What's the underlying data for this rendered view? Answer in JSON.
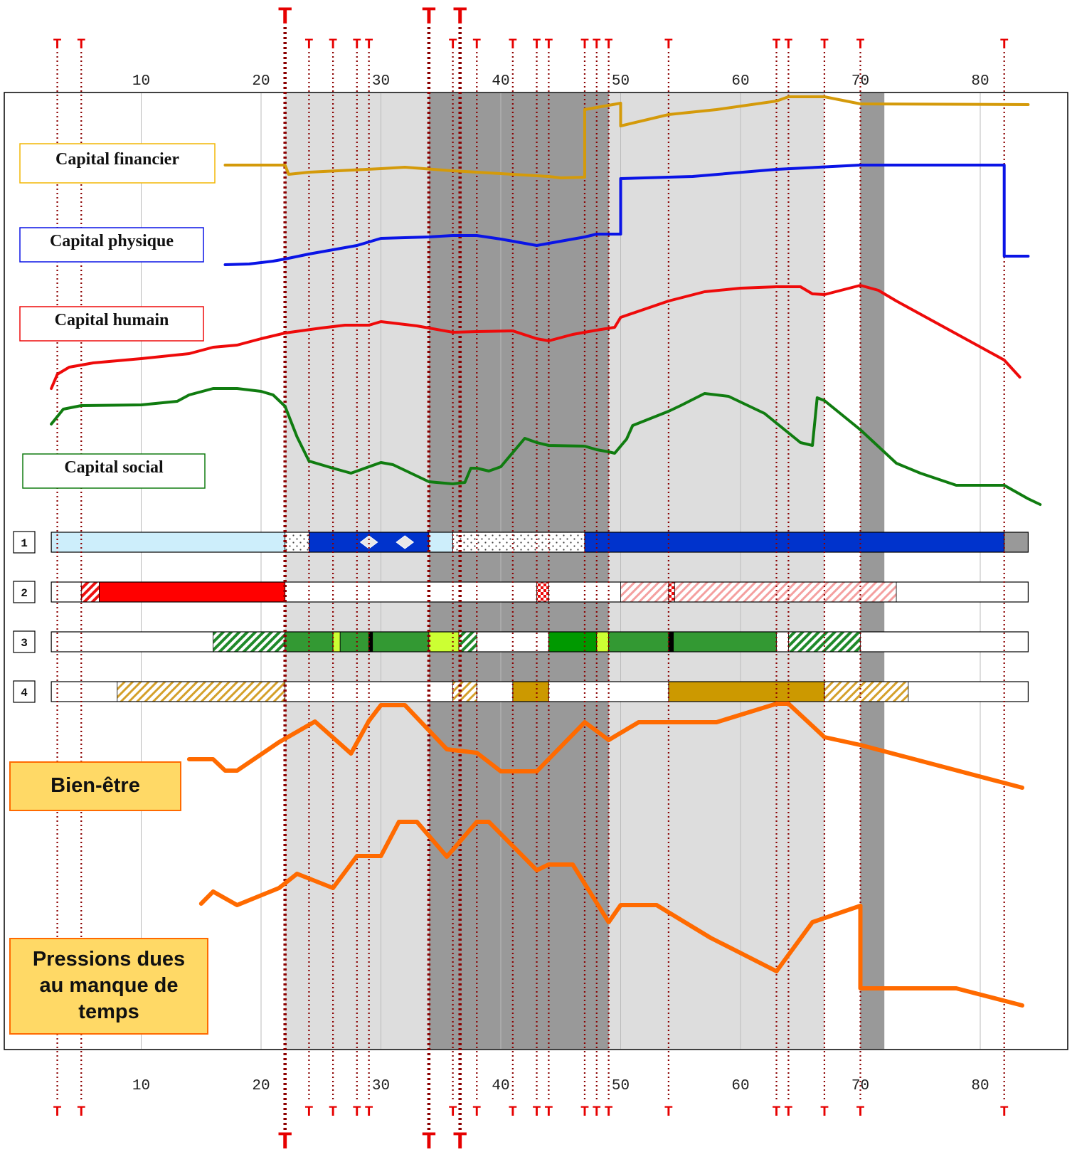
{
  "chart_data": {
    "type": "line",
    "x_ticks": [
      10,
      20,
      30,
      40,
      50,
      60,
      70,
      80
    ],
    "x_range": [
      0,
      88
    ],
    "shaded_periods": [
      {
        "start": 22,
        "end": 67,
        "tone": "light"
      },
      {
        "start": 34,
        "end": 49,
        "tone": "dark"
      },
      {
        "start": 70,
        "end": 72,
        "tone": "dark"
      }
    ],
    "transitions": {
      "marker": "T",
      "minor_ages": [
        3,
        5,
        24,
        26,
        28,
        29,
        36,
        38,
        41,
        43,
        44,
        47,
        48,
        49,
        54,
        63,
        64,
        67,
        70,
        82
      ],
      "major_ages": [
        22,
        34,
        36.6
      ]
    },
    "capital_series": [
      {
        "name": "Capital financier",
        "color": "#d49a0a",
        "points": [
          [
            17,
            232
          ],
          [
            22,
            232
          ],
          [
            22.3,
            245
          ],
          [
            24,
            242
          ],
          [
            30,
            237
          ],
          [
            32,
            235
          ],
          [
            36,
            240
          ],
          [
            44,
            248
          ],
          [
            45,
            250
          ],
          [
            47,
            249
          ],
          [
            47,
            154
          ],
          [
            50,
            145
          ],
          [
            50,
            177
          ],
          [
            54,
            161
          ],
          [
            58,
            154
          ],
          [
            63,
            142
          ],
          [
            64,
            136
          ],
          [
            67,
            136
          ],
          [
            70,
            146
          ],
          [
            84,
            147
          ]
        ]
      },
      {
        "name": "Capital physique",
        "color": "#0a14e6",
        "points": [
          [
            17,
            372
          ],
          [
            19,
            371
          ],
          [
            21,
            367
          ],
          [
            22,
            364
          ],
          [
            24,
            357
          ],
          [
            26,
            351
          ],
          [
            28,
            345
          ],
          [
            30,
            335
          ],
          [
            34,
            333
          ],
          [
            36,
            331
          ],
          [
            38,
            331
          ],
          [
            40,
            336
          ],
          [
            42,
            342
          ],
          [
            43,
            345
          ],
          [
            45,
            339
          ],
          [
            47,
            333
          ],
          [
            48,
            329
          ],
          [
            50,
            329
          ],
          [
            50,
            251
          ],
          [
            56,
            248
          ],
          [
            63,
            238
          ],
          [
            70,
            232
          ],
          [
            82,
            232
          ],
          [
            82,
            360
          ],
          [
            84,
            360
          ]
        ]
      },
      {
        "name": "Capital humain",
        "color": "#ee0a0a",
        "points": [
          [
            2.5,
            546
          ],
          [
            3,
            526
          ],
          [
            4,
            516
          ],
          [
            6,
            510
          ],
          [
            10,
            504
          ],
          [
            14,
            497
          ],
          [
            16,
            488
          ],
          [
            18,
            485
          ],
          [
            20,
            476
          ],
          [
            22,
            468
          ],
          [
            25,
            461
          ],
          [
            27,
            457
          ],
          [
            29,
            457
          ],
          [
            30,
            452
          ],
          [
            33,
            458
          ],
          [
            36,
            467
          ],
          [
            38,
            466
          ],
          [
            41,
            465
          ],
          [
            43,
            476
          ],
          [
            44,
            479
          ],
          [
            46,
            470
          ],
          [
            48,
            464
          ],
          [
            49.5,
            460
          ],
          [
            50,
            446
          ],
          [
            54,
            423
          ],
          [
            57,
            410
          ],
          [
            60,
            405
          ],
          [
            63,
            403
          ],
          [
            65,
            403
          ],
          [
            66,
            413
          ],
          [
            67,
            414
          ],
          [
            70,
            401
          ],
          [
            71.5,
            408
          ],
          [
            73,
            423
          ],
          [
            82,
            506
          ],
          [
            83.3,
            530
          ]
        ]
      },
      {
        "name": "Capital social",
        "color": "#107c10",
        "points": [
          [
            2.5,
            596
          ],
          [
            3.5,
            575
          ],
          [
            5,
            570
          ],
          [
            10,
            569
          ],
          [
            13,
            564
          ],
          [
            14,
            555
          ],
          [
            16,
            546
          ],
          [
            18,
            546
          ],
          [
            20,
            550
          ],
          [
            21,
            555
          ],
          [
            22,
            571
          ],
          [
            23,
            614
          ],
          [
            24,
            648
          ],
          [
            26,
            658
          ],
          [
            27.5,
            665
          ],
          [
            30,
            650
          ],
          [
            31,
            653
          ],
          [
            34,
            677
          ],
          [
            36,
            680
          ],
          [
            37,
            678
          ],
          [
            37.5,
            658
          ],
          [
            38,
            658
          ],
          [
            39,
            662
          ],
          [
            40,
            656
          ],
          [
            42,
            616
          ],
          [
            43,
            622
          ],
          [
            44,
            626
          ],
          [
            47,
            627
          ],
          [
            48,
            632
          ],
          [
            49,
            635
          ],
          [
            49.5,
            637
          ],
          [
            50.5,
            617
          ],
          [
            51,
            598
          ],
          [
            54,
            578
          ],
          [
            55,
            570
          ],
          [
            57,
            553
          ],
          [
            59,
            557
          ],
          [
            62,
            581
          ],
          [
            65,
            622
          ],
          [
            66,
            626
          ],
          [
            66.4,
            559
          ],
          [
            67,
            563
          ],
          [
            70,
            604
          ],
          [
            73,
            651
          ],
          [
            75,
            665
          ],
          [
            78,
            682
          ],
          [
            82,
            682
          ],
          [
            84,
            701
          ],
          [
            85,
            709
          ]
        ]
      }
    ],
    "life_series": [
      {
        "name": "Bien-être",
        "color": "#ff6a00",
        "points": [
          [
            14,
            1067
          ],
          [
            16,
            1067
          ],
          [
            17,
            1083
          ],
          [
            18,
            1083
          ],
          [
            21.5,
            1043
          ],
          [
            24.5,
            1014
          ],
          [
            27.5,
            1059
          ],
          [
            29,
            1013
          ],
          [
            30,
            991
          ],
          [
            32,
            991
          ],
          [
            35.5,
            1053
          ],
          [
            38,
            1058
          ],
          [
            40,
            1084
          ],
          [
            43,
            1084
          ],
          [
            47,
            1015
          ],
          [
            49,
            1040
          ],
          [
            51.5,
            1015
          ],
          [
            58,
            1015
          ],
          [
            63,
            989
          ],
          [
            64,
            989
          ],
          [
            67,
            1036
          ],
          [
            70,
            1047
          ],
          [
            83.5,
            1107
          ]
        ]
      },
      {
        "name": "Pressions dues au manque de temps",
        "color": "#ff6a00",
        "points": [
          [
            15,
            1270
          ],
          [
            16,
            1253
          ],
          [
            18,
            1272
          ],
          [
            21.5,
            1248
          ],
          [
            23,
            1228
          ],
          [
            26,
            1248
          ],
          [
            28,
            1203
          ],
          [
            30,
            1203
          ],
          [
            31.5,
            1155
          ],
          [
            33,
            1155
          ],
          [
            35.5,
            1204
          ],
          [
            38,
            1155
          ],
          [
            39,
            1155
          ],
          [
            43,
            1223
          ],
          [
            44,
            1215
          ],
          [
            46,
            1215
          ],
          [
            49,
            1296
          ],
          [
            50,
            1272
          ],
          [
            53,
            1272
          ],
          [
            57.5,
            1318
          ],
          [
            63,
            1365
          ],
          [
            66,
            1296
          ],
          [
            70,
            1273
          ],
          [
            70,
            1389
          ],
          [
            78,
            1389
          ],
          [
            83.5,
            1413
          ]
        ]
      }
    ],
    "bars": [
      {
        "label": "1",
        "segments": [
          {
            "start": 2.5,
            "end": 22,
            "style": "light-blue"
          },
          {
            "start": 22,
            "end": 24,
            "style": "dotted"
          },
          {
            "start": 24,
            "end": 34,
            "style": "blue"
          },
          {
            "start": 34,
            "end": 36,
            "style": "light-blue"
          },
          {
            "start": 36,
            "end": 47,
            "style": "dotted"
          },
          {
            "start": 47,
            "end": 82,
            "style": "blue"
          },
          {
            "start": 82,
            "end": 84,
            "style": "grey"
          }
        ],
        "diamonds_at": [
          29,
          32
        ]
      },
      {
        "label": "2",
        "segments": [
          {
            "start": 5,
            "end": 6.5,
            "style": "red-hatch"
          },
          {
            "start": 6.5,
            "end": 22,
            "style": "red"
          },
          {
            "start": 43,
            "end": 44,
            "style": "red-check"
          },
          {
            "start": 50,
            "end": 54,
            "style": "pink-hatch"
          },
          {
            "start": 54,
            "end": 54.5,
            "style": "red-check"
          },
          {
            "start": 54.5,
            "end": 73,
            "style": "pink-hatch"
          }
        ]
      },
      {
        "label": "3",
        "segments": [
          {
            "start": 16,
            "end": 22,
            "style": "green-hatch"
          },
          {
            "start": 22,
            "end": 26,
            "style": "green"
          },
          {
            "start": 26,
            "end": 26.6,
            "style": "lime"
          },
          {
            "start": 26.6,
            "end": 29,
            "style": "green"
          },
          {
            "start": 29,
            "end": 29.3,
            "style": "black"
          },
          {
            "start": 29.3,
            "end": 34,
            "style": "green"
          },
          {
            "start": 34,
            "end": 36.5,
            "style": "lime"
          },
          {
            "start": 36.5,
            "end": 38,
            "style": "green-hatch"
          },
          {
            "start": 44,
            "end": 48,
            "style": "bright-green"
          },
          {
            "start": 48,
            "end": 49,
            "style": "lime"
          },
          {
            "start": 49,
            "end": 54,
            "style": "green"
          },
          {
            "start": 54,
            "end": 54.4,
            "style": "black"
          },
          {
            "start": 54.4,
            "end": 63,
            "style": "green"
          },
          {
            "start": 64,
            "end": 70,
            "style": "green-hatch"
          }
        ]
      },
      {
        "label": "4",
        "segments": [
          {
            "start": 8,
            "end": 22,
            "style": "gold-hatch"
          },
          {
            "start": 36,
            "end": 38,
            "style": "gold-hatch"
          },
          {
            "start": 41,
            "end": 44,
            "style": "gold"
          },
          {
            "start": 54,
            "end": 67,
            "style": "gold"
          },
          {
            "start": 67,
            "end": 74,
            "style": "gold-hatch"
          }
        ]
      }
    ]
  },
  "labels": {
    "capital_financier": "Capital financier",
    "capital_physique": "Capital physique",
    "capital_humain": "Capital humain",
    "capital_social": "Capital social",
    "bien_etre": "Bien-être",
    "pressions_1": "Pressions dues",
    "pressions_2": "au manque de",
    "pressions_3": "temps"
  },
  "colors": {
    "financier": "#d49a0a",
    "physique": "#0a14e6",
    "humain": "#ee0a0a",
    "social": "#107c10",
    "orange": "#ff6a00",
    "orange_box": "#ffd966",
    "transition_line": "#8b0000",
    "transition_text": "#e60000",
    "shade_light": "#dddddd",
    "shade_dark": "#999999"
  }
}
